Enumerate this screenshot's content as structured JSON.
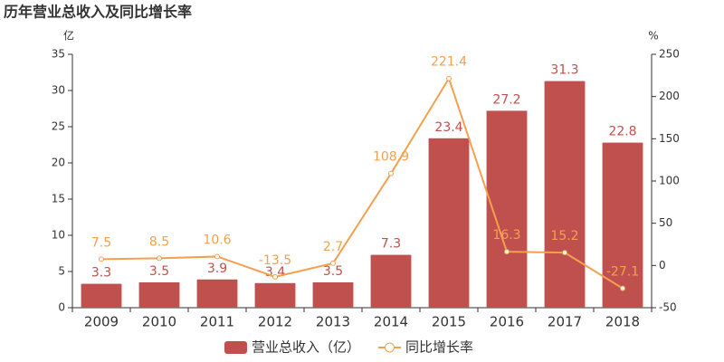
{
  "chart_data": {
    "type": "bar-line",
    "title": "历年营业总收入及同比增长率",
    "y_label": "亿",
    "y2_label": "%",
    "categories": [
      "2009",
      "2010",
      "2011",
      "2012",
      "2013",
      "2014",
      "2015",
      "2016",
      "2017",
      "2018"
    ],
    "series": [
      {
        "name": "营业总收入（亿）",
        "type": "bar",
        "color": "#c0504d",
        "values": [
          3.3,
          3.5,
          3.9,
          3.4,
          3.5,
          7.3,
          23.4,
          27.2,
          31.3,
          22.8
        ]
      },
      {
        "name": "同比增长率",
        "type": "line",
        "axis": "y2",
        "color": "#f4a04f",
        "values": [
          7.5,
          8.5,
          10.6,
          -13.5,
          2.7,
          108.9,
          221.4,
          16.3,
          15.2,
          -27.1
        ]
      }
    ],
    "ylim": [
      0,
      35
    ],
    "yticks": [
      0,
      5,
      10,
      15,
      20,
      25,
      30,
      35
    ],
    "y2lim": [
      -50,
      250
    ],
    "y2ticks": [
      -50,
      0,
      50,
      100,
      150,
      200,
      250
    ],
    "legend": "bottom"
  }
}
